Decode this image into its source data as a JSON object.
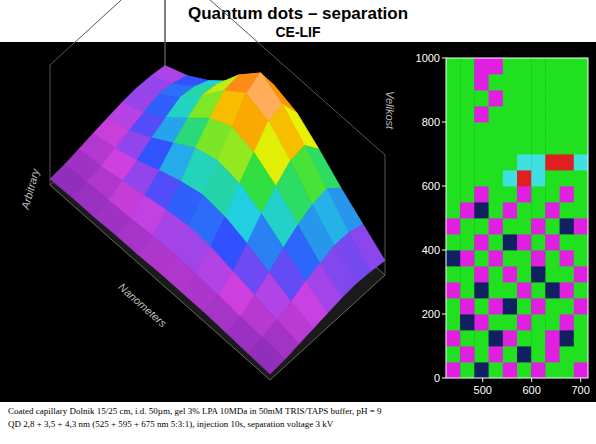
{
  "title": "Quantum dots – separation",
  "subtitle": "CE-LIF",
  "chart_data": [
    {
      "type": "surface",
      "x_label": "Nanometers",
      "y_label": "Velikost",
      "z_label": "Arbitrary",
      "zlim": [
        0,
        100
      ],
      "tick_labels": false,
      "colors": [
        "#6020a0",
        "#d040e0",
        "#3050ff",
        "#20d0e0",
        "#30e040",
        "#f0f000",
        "#ff8000",
        "#ffffff"
      ],
      "heights": [
        [
          5,
          6,
          6,
          7,
          7,
          8,
          8,
          8,
          7,
          6,
          5
        ],
        [
          6,
          8,
          9,
          10,
          12,
          13,
          12,
          11,
          9,
          8,
          6
        ],
        [
          8,
          10,
          14,
          18,
          22,
          25,
          24,
          20,
          16,
          12,
          8
        ],
        [
          10,
          14,
          20,
          28,
          35,
          40,
          38,
          32,
          24,
          16,
          10
        ],
        [
          12,
          18,
          28,
          40,
          52,
          58,
          55,
          46,
          34,
          22,
          12
        ],
        [
          14,
          22,
          34,
          50,
          66,
          75,
          70,
          58,
          42,
          26,
          14
        ],
        [
          15,
          26,
          40,
          58,
          78,
          92,
          85,
          68,
          48,
          30,
          15
        ],
        [
          14,
          24,
          38,
          56,
          80,
          98,
          88,
          70,
          50,
          30,
          14
        ],
        [
          12,
          20,
          32,
          48,
          64,
          76,
          70,
          56,
          40,
          26,
          12
        ]
      ]
    },
    {
      "type": "heatmap",
      "xlim": [
        425,
        715
      ],
      "ylim": [
        0,
        1000
      ],
      "xticks": [
        500,
        600,
        700
      ],
      "yticks": [
        0,
        200,
        400,
        600,
        800,
        1000
      ],
      "colors": [
        "#e020e0",
        "#102060",
        "#20e020",
        "#40e0e0",
        "#e02020"
      ],
      "cells": [
        [
          0,
          2,
          1,
          2,
          0,
          2,
          0,
          2,
          2,
          0
        ],
        [
          2,
          0,
          2,
          0,
          2,
          1,
          2,
          0,
          2,
          2
        ],
        [
          0,
          2,
          2,
          1,
          0,
          2,
          2,
          0,
          1,
          2
        ],
        [
          2,
          1,
          0,
          2,
          2,
          0,
          2,
          2,
          0,
          2
        ],
        [
          2,
          0,
          2,
          0,
          1,
          2,
          0,
          2,
          2,
          0
        ],
        [
          0,
          2,
          1,
          2,
          2,
          0,
          2,
          1,
          0,
          2
        ],
        [
          2,
          2,
          0,
          2,
          0,
          2,
          1,
          2,
          2,
          0
        ],
        [
          1,
          0,
          2,
          0,
          2,
          2,
          0,
          2,
          0,
          2
        ],
        [
          2,
          2,
          0,
          2,
          1,
          0,
          2,
          0,
          2,
          2
        ],
        [
          0,
          2,
          2,
          0,
          2,
          2,
          0,
          2,
          1,
          0
        ],
        [
          2,
          0,
          1,
          2,
          0,
          2,
          2,
          0,
          2,
          2
        ],
        [
          2,
          2,
          0,
          2,
          2,
          0,
          2,
          2,
          0,
          2
        ],
        [
          2,
          2,
          2,
          2,
          3,
          4,
          3,
          2,
          2,
          2
        ],
        [
          2,
          2,
          2,
          2,
          2,
          3,
          3,
          4,
          4,
          3
        ],
        [
          2,
          2,
          2,
          2,
          2,
          2,
          2,
          2,
          2,
          2
        ],
        [
          2,
          2,
          2,
          2,
          2,
          2,
          2,
          2,
          2,
          2
        ],
        [
          2,
          2,
          0,
          2,
          2,
          2,
          2,
          2,
          2,
          2
        ],
        [
          2,
          2,
          2,
          0,
          2,
          2,
          2,
          2,
          2,
          2
        ],
        [
          2,
          2,
          0,
          2,
          2,
          2,
          2,
          2,
          2,
          2
        ],
        [
          2,
          2,
          0,
          0,
          2,
          2,
          2,
          2,
          2,
          2
        ]
      ]
    }
  ],
  "caption": [
    "Coated capillary Dolnik 15/25 cm, i.d. 50µm, gel 3% LPA 10MDa in 50mM TRIS/TAPS buffer, pH = 9",
    "QD 2,8 + 3,5 + 4,3 nm (525 + 595 + 675 nm 5:3:1), injection 10s, separation voltage 3 kV"
  ]
}
